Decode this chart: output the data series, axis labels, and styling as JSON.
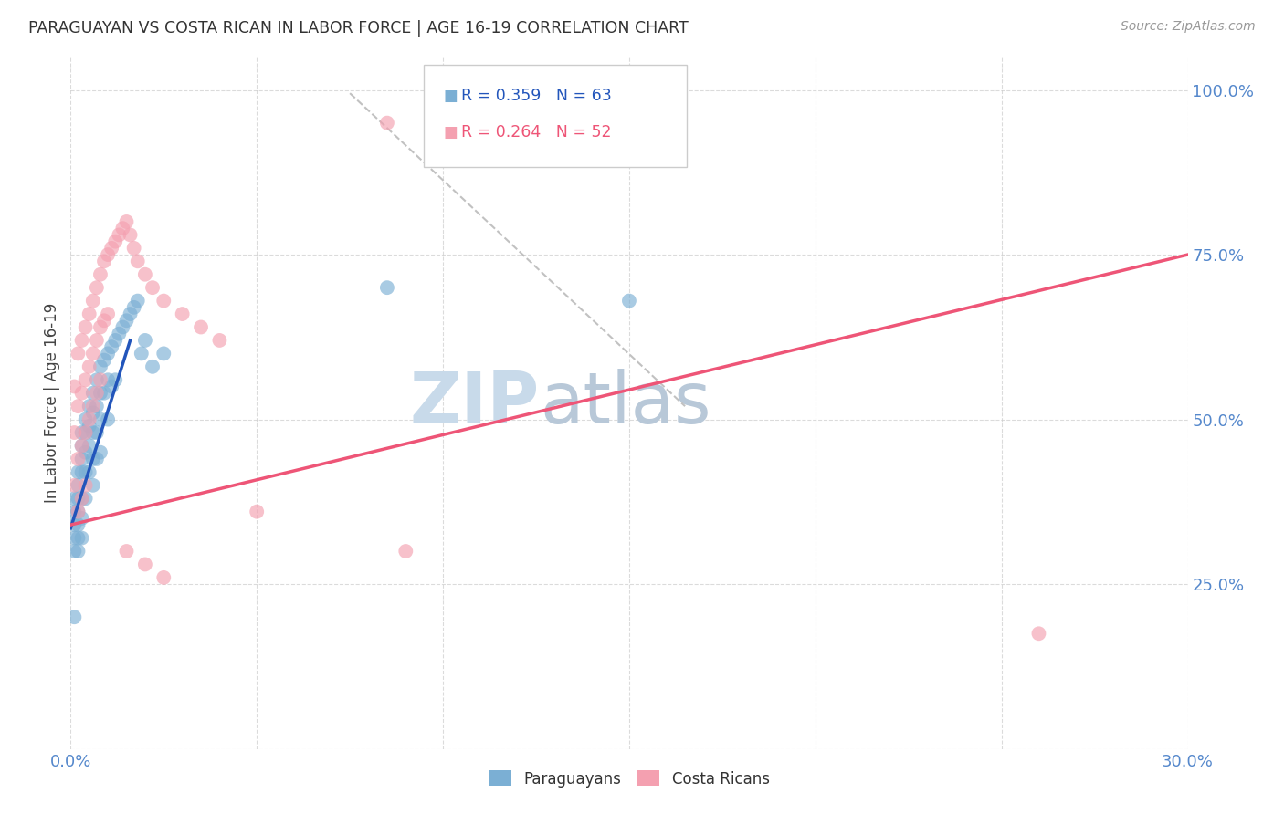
{
  "title": "PARAGUAYAN VS COSTA RICAN IN LABOR FORCE | AGE 16-19 CORRELATION CHART",
  "source": "Source: ZipAtlas.com",
  "ylabel": "In Labor Force | Age 16-19",
  "xlim": [
    0.0,
    0.3
  ],
  "ylim": [
    0.0,
    1.05
  ],
  "ytick_vals": [
    0.0,
    0.25,
    0.5,
    0.75,
    1.0
  ],
  "ytick_labels": [
    "",
    "25.0%",
    "50.0%",
    "75.0%",
    "100.0%"
  ],
  "xtick_vals": [
    0.0,
    0.05,
    0.1,
    0.15,
    0.2,
    0.25,
    0.3
  ],
  "xtick_labels": [
    "0.0%",
    "",
    "",
    "",
    "",
    "",
    "30.0%"
  ],
  "blue_R": 0.359,
  "blue_N": 63,
  "pink_R": 0.264,
  "pink_N": 52,
  "blue_scatter_color": "#7BAFD4",
  "pink_scatter_color": "#F4A0B0",
  "blue_line_color": "#2255BB",
  "pink_line_color": "#EE5577",
  "dashed_line_color": "#BBBBBB",
  "title_color": "#333333",
  "axis_color": "#5588CC",
  "watermark_color": "#DDEEFF",
  "background_color": "#FFFFFF",
  "par_x": [
    0.001,
    0.001,
    0.001,
    0.001,
    0.001,
    0.002,
    0.002,
    0.002,
    0.002,
    0.002,
    0.002,
    0.002,
    0.003,
    0.003,
    0.003,
    0.003,
    0.003,
    0.003,
    0.003,
    0.004,
    0.004,
    0.004,
    0.004,
    0.004,
    0.005,
    0.005,
    0.005,
    0.005,
    0.006,
    0.006,
    0.006,
    0.006,
    0.006,
    0.007,
    0.007,
    0.007,
    0.007,
    0.008,
    0.008,
    0.008,
    0.008,
    0.009,
    0.009,
    0.01,
    0.01,
    0.01,
    0.011,
    0.011,
    0.012,
    0.012,
    0.013,
    0.014,
    0.015,
    0.016,
    0.017,
    0.018,
    0.019,
    0.02,
    0.022,
    0.025,
    0.085,
    0.15,
    0.001
  ],
  "par_y": [
    0.38,
    0.36,
    0.34,
    0.32,
    0.3,
    0.42,
    0.4,
    0.38,
    0.36,
    0.34,
    0.32,
    0.3,
    0.48,
    0.46,
    0.44,
    0.42,
    0.38,
    0.35,
    0.32,
    0.5,
    0.48,
    0.45,
    0.42,
    0.38,
    0.52,
    0.49,
    0.46,
    0.42,
    0.54,
    0.51,
    0.48,
    0.44,
    0.4,
    0.56,
    0.52,
    0.48,
    0.44,
    0.58,
    0.54,
    0.5,
    0.45,
    0.59,
    0.54,
    0.6,
    0.56,
    0.5,
    0.61,
    0.55,
    0.62,
    0.56,
    0.63,
    0.64,
    0.65,
    0.66,
    0.67,
    0.68,
    0.6,
    0.62,
    0.58,
    0.6,
    0.7,
    0.68,
    0.2
  ],
  "cr_x": [
    0.001,
    0.001,
    0.001,
    0.002,
    0.002,
    0.002,
    0.002,
    0.003,
    0.003,
    0.003,
    0.003,
    0.004,
    0.004,
    0.004,
    0.004,
    0.005,
    0.005,
    0.005,
    0.006,
    0.006,
    0.006,
    0.007,
    0.007,
    0.007,
    0.008,
    0.008,
    0.008,
    0.009,
    0.009,
    0.01,
    0.01,
    0.011,
    0.012,
    0.013,
    0.014,
    0.015,
    0.016,
    0.017,
    0.018,
    0.02,
    0.022,
    0.025,
    0.03,
    0.035,
    0.04,
    0.015,
    0.02,
    0.025,
    0.26,
    0.085,
    0.09,
    0.05
  ],
  "cr_y": [
    0.55,
    0.48,
    0.4,
    0.6,
    0.52,
    0.44,
    0.36,
    0.62,
    0.54,
    0.46,
    0.38,
    0.64,
    0.56,
    0.48,
    0.4,
    0.66,
    0.58,
    0.5,
    0.68,
    0.6,
    0.52,
    0.7,
    0.62,
    0.54,
    0.72,
    0.64,
    0.56,
    0.74,
    0.65,
    0.75,
    0.66,
    0.76,
    0.77,
    0.78,
    0.79,
    0.8,
    0.78,
    0.76,
    0.74,
    0.72,
    0.7,
    0.68,
    0.66,
    0.64,
    0.62,
    0.3,
    0.28,
    0.26,
    0.175,
    0.95,
    0.3,
    0.36
  ],
  "blue_line_x": [
    0.0,
    0.016
  ],
  "blue_line_y": [
    0.335,
    0.62
  ],
  "pink_line_x": [
    0.0,
    0.3
  ],
  "pink_line_y": [
    0.34,
    0.75
  ],
  "dash_line_x": [
    0.075,
    0.165
  ],
  "dash_line_y": [
    0.995,
    0.52
  ]
}
